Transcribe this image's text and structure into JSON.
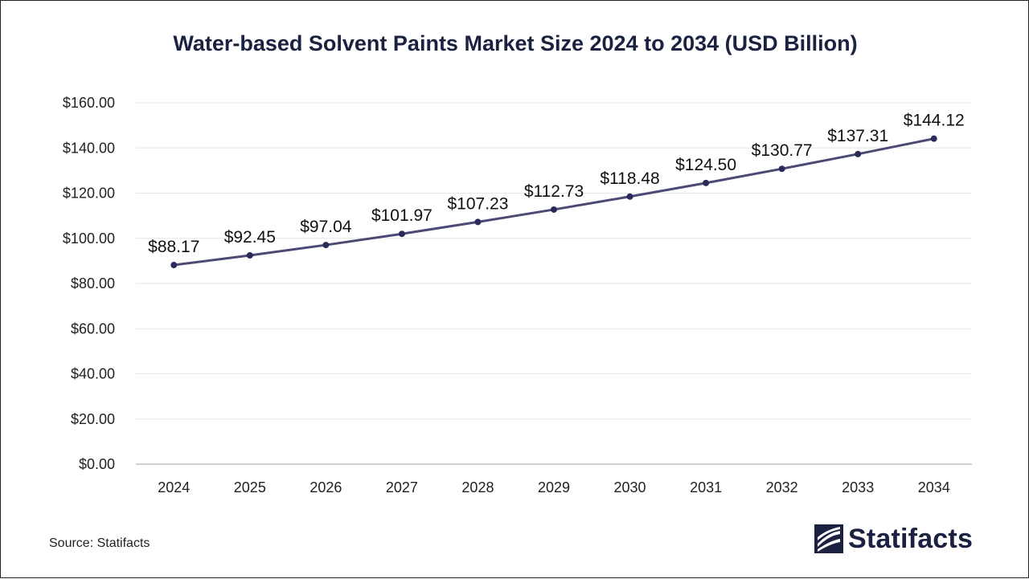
{
  "chart_data": {
    "type": "line",
    "title": "Water-based Solvent Paints Market Size 2024 to 2034 (USD Billion)",
    "xlabel": "",
    "ylabel": "",
    "categories": [
      "2024",
      "2025",
      "2026",
      "2027",
      "2028",
      "2029",
      "2030",
      "2031",
      "2032",
      "2033",
      "2034"
    ],
    "values": [
      88.17,
      92.45,
      97.04,
      101.97,
      107.23,
      112.73,
      118.48,
      124.5,
      130.77,
      137.31,
      144.12
    ],
    "data_labels": [
      "$88.17",
      "$92.45",
      "$97.04",
      "$101.97",
      "$107.23",
      "$112.73",
      "$118.48",
      "$124.50",
      "$130.77",
      "$137.31",
      "$144.12"
    ],
    "ylim": [
      0,
      160
    ],
    "yticks": [
      0,
      20,
      40,
      60,
      80,
      100,
      120,
      140,
      160
    ],
    "ytick_labels": [
      "$0.00",
      "$20.00",
      "$40.00",
      "$60.00",
      "$80.00",
      "$100.00",
      "$120.00",
      "$140.00",
      "$160.00"
    ],
    "grid": "horizontal",
    "legend": "none",
    "line_color": "#4a4a75",
    "marker_color": "#2b2b5a"
  },
  "footer": {
    "source": "Source: Statifacts",
    "logo_text": "Statifacts",
    "logo_icon": "statifacts-logo-icon"
  }
}
